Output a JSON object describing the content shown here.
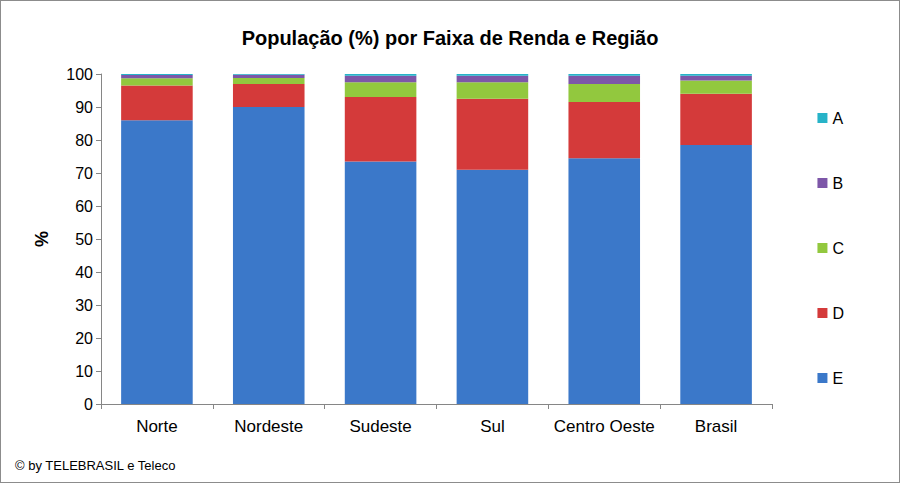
{
  "chart_data": {
    "type": "bar",
    "title": "População (%) por Faixa de Renda e Região",
    "y_label": "%",
    "annotations": [
      "© by TELEBRASIL e Teleco"
    ],
    "categories": [
      "Norte",
      "Nordeste",
      "Sudeste",
      "Sul",
      "Centro Oeste",
      "Brasil"
    ],
    "stacked": true,
    "grid": false,
    "legend": "right",
    "ylim": [
      0,
      100
    ],
    "yticks": [
      0,
      10,
      20,
      30,
      40,
      50,
      60,
      70,
      80,
      90,
      100
    ],
    "series": [
      {
        "name": "E",
        "color": "#3b78c9",
        "values": [
          86,
          90,
          73.5,
          71,
          74.5,
          78.5
        ]
      },
      {
        "name": "D",
        "color": "#d43a3a",
        "values": [
          10.5,
          7,
          19.5,
          21.5,
          17,
          15.5
        ]
      },
      {
        "name": "C",
        "color": "#92c83e",
        "values": [
          2.2,
          1.8,
          4.5,
          5,
          5.5,
          4
        ]
      },
      {
        "name": "B",
        "color": "#7d56a8",
        "values": [
          1,
          1,
          2,
          2,
          2.5,
          1.5
        ]
      },
      {
        "name": "A",
        "color": "#27b3c8",
        "values": [
          0.3,
          0.2,
          0.5,
          0.5,
          0.5,
          0.5
        ]
      }
    ]
  }
}
